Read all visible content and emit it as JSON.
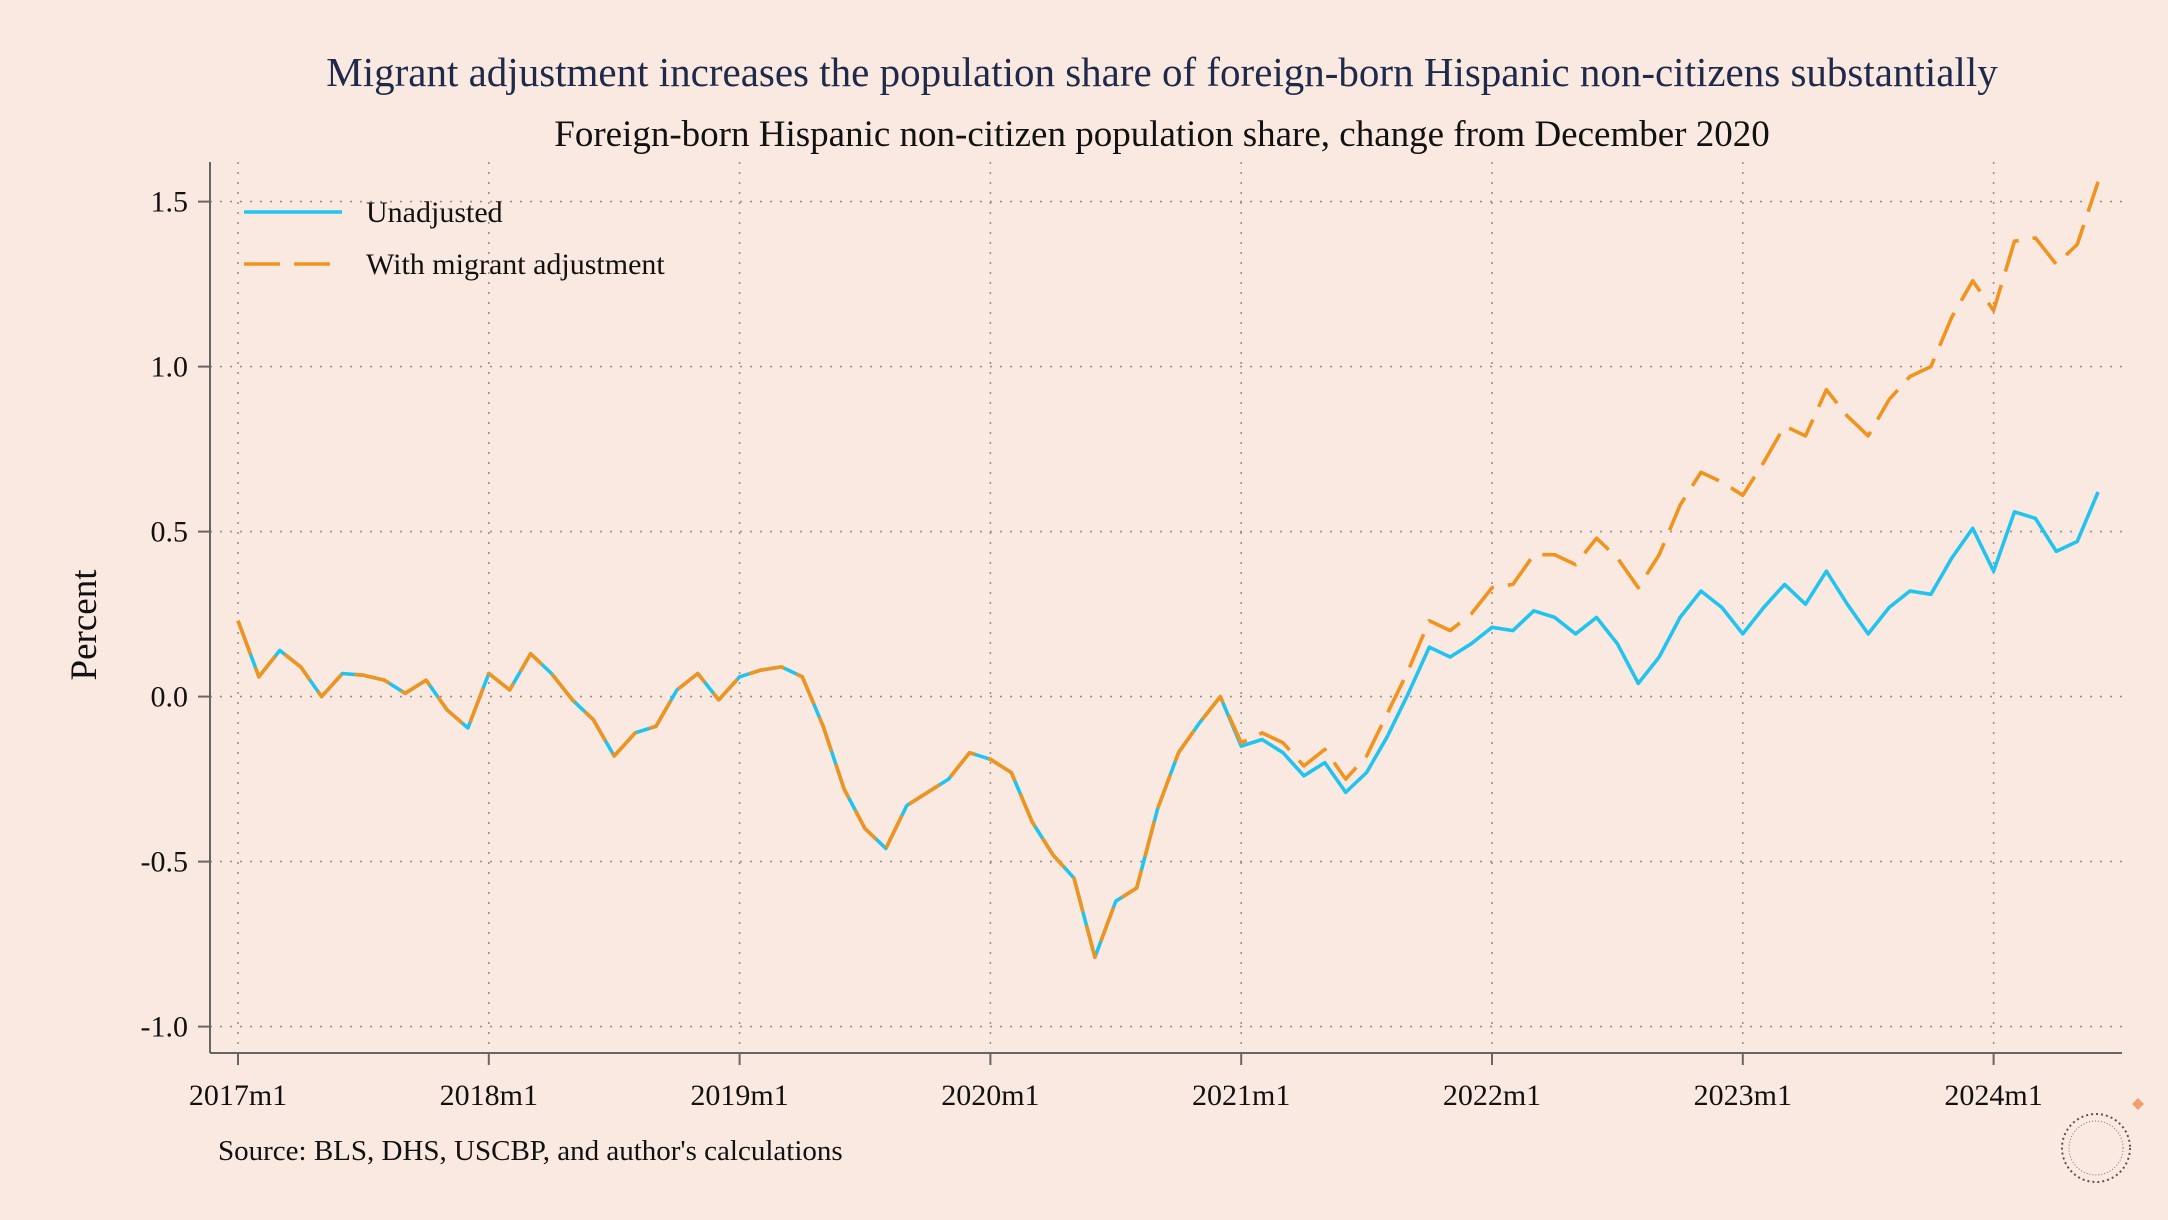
{
  "chart_data": {
    "type": "line",
    "title": "Migrant adjustment increases the population share of foreign-born Hispanic non-citizens substantially",
    "subtitle": "Foreign-born Hispanic non-citizen population share, change from December 2020",
    "ylabel": "Percent",
    "xlabel": "",
    "note": "Source: BLS, DHS, USCBP, and author's calculations",
    "x_start": "2017m1",
    "x_ticks": [
      "2017m1",
      "2018m1",
      "2019m1",
      "2020m1",
      "2021m1",
      "2022m1",
      "2023m1",
      "2024m1"
    ],
    "y_ticks": [
      1.5,
      1.0,
      0.5,
      0.0,
      -0.5,
      -1.0
    ],
    "y_tick_labels": [
      "1.5",
      "1.0",
      "0.5",
      "0.0",
      "-0.5",
      "-1.0"
    ],
    "ylim": [
      -1.08,
      1.62
    ],
    "grid": true,
    "legend_position": "top-left",
    "series": [
      {
        "name": "Unadjusted",
        "color": "#22c4ef",
        "dash": "solid",
        "values": [
          0.23,
          0.06,
          0.14,
          0.09,
          0.0,
          0.07,
          0.065,
          0.05,
          0.01,
          0.05,
          -0.04,
          -0.095,
          0.07,
          0.02,
          0.13,
          0.07,
          -0.01,
          -0.07,
          -0.18,
          -0.11,
          -0.09,
          0.02,
          0.07,
          -0.01,
          0.06,
          0.08,
          0.09,
          0.06,
          -0.09,
          -0.28,
          -0.4,
          -0.46,
          -0.33,
          -0.29,
          -0.25,
          -0.17,
          -0.19,
          -0.23,
          -0.38,
          -0.48,
          -0.55,
          -0.79,
          -0.62,
          -0.58,
          -0.34,
          -0.17,
          -0.08,
          0.0,
          -0.15,
          -0.13,
          -0.17,
          -0.24,
          -0.2,
          -0.29,
          -0.23,
          -0.12,
          0.01,
          0.15,
          0.12,
          0.16,
          0.21,
          0.2,
          0.26,
          0.24,
          0.19,
          0.24,
          0.16,
          0.04,
          0.12,
          0.24,
          0.32,
          0.27,
          0.19,
          0.27,
          0.34,
          0.28,
          0.38,
          0.28,
          0.19,
          0.27,
          0.32,
          0.31,
          0.42,
          0.51,
          0.38,
          0.56,
          0.54,
          0.44,
          0.47,
          0.62
        ]
      },
      {
        "name": "With migrant adjustment",
        "color": "#f0941f",
        "dash": "dashed",
        "values": [
          0.23,
          0.06,
          0.14,
          0.09,
          0.0,
          0.07,
          0.065,
          0.05,
          0.01,
          0.05,
          -0.04,
          -0.095,
          0.07,
          0.02,
          0.13,
          0.07,
          -0.01,
          -0.07,
          -0.18,
          -0.11,
          -0.09,
          0.02,
          0.07,
          -0.01,
          0.06,
          0.08,
          0.09,
          0.06,
          -0.09,
          -0.28,
          -0.4,
          -0.46,
          -0.33,
          -0.29,
          -0.25,
          -0.17,
          -0.19,
          -0.23,
          -0.38,
          -0.48,
          -0.55,
          -0.79,
          -0.62,
          -0.58,
          -0.34,
          -0.17,
          -0.08,
          0.0,
          -0.14,
          -0.11,
          -0.14,
          -0.21,
          -0.16,
          -0.25,
          -0.18,
          -0.05,
          0.08,
          0.23,
          0.2,
          0.25,
          0.33,
          0.34,
          0.43,
          0.43,
          0.4,
          0.48,
          0.42,
          0.33,
          0.43,
          0.58,
          0.68,
          0.65,
          0.61,
          0.71,
          0.82,
          0.79,
          0.93,
          0.85,
          0.79,
          0.9,
          0.97,
          1.0,
          1.15,
          1.26,
          1.17,
          1.38,
          1.39,
          1.31,
          1.37,
          1.56
        ]
      }
    ]
  },
  "colors": {
    "background": "#f9e9e1",
    "title": "#1f2a4a",
    "text": "#111111",
    "grid": "#9a8f8a",
    "axis": "#666666",
    "logo_dot": "#f0a070"
  },
  "logo": {
    "icon": "circular-seal-logo"
  }
}
